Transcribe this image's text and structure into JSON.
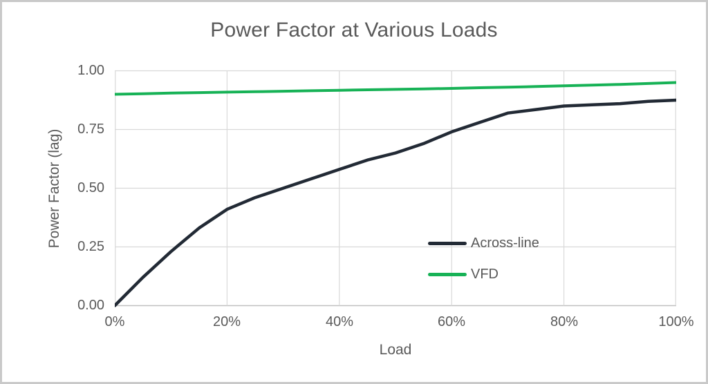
{
  "chart_data": {
    "type": "line",
    "title": "Power Factor at Various Loads",
    "xlabel": "Load",
    "ylabel": "Power Factor (lag)",
    "xlim": [
      0,
      100
    ],
    "ylim": [
      0,
      1
    ],
    "grid": true,
    "legend_position": "inside-right",
    "x_tick_labels": [
      "0%",
      "20%",
      "40%",
      "60%",
      "80%",
      "100%"
    ],
    "y_tick_labels": [
      "1.00",
      "0.75",
      "0.50",
      "0.25",
      "0.00"
    ],
    "x": [
      0,
      5,
      10,
      15,
      20,
      25,
      30,
      35,
      40,
      45,
      50,
      55,
      60,
      65,
      70,
      75,
      80,
      85,
      90,
      95,
      100
    ],
    "series": [
      {
        "name": "Across-line",
        "color": "#222a35",
        "values": [
          0.0,
          0.12,
          0.23,
          0.33,
          0.41,
          0.46,
          0.5,
          0.54,
          0.58,
          0.62,
          0.65,
          0.69,
          0.74,
          0.78,
          0.82,
          0.835,
          0.85,
          0.855,
          0.86,
          0.87,
          0.875
        ]
      },
      {
        "name": "VFD",
        "color": "#17b256",
        "values": [
          0.9,
          0.902,
          0.905,
          0.907,
          0.909,
          0.911,
          0.913,
          0.915,
          0.917,
          0.919,
          0.921,
          0.923,
          0.925,
          0.928,
          0.93,
          0.933,
          0.936,
          0.939,
          0.942,
          0.946,
          0.95
        ]
      }
    ],
    "grid_color": "#d9d9d9",
    "axis_color": "#bfbfbf",
    "text_color": "#595959",
    "background": "#ffffff",
    "border_color": "#c9c9c9"
  }
}
